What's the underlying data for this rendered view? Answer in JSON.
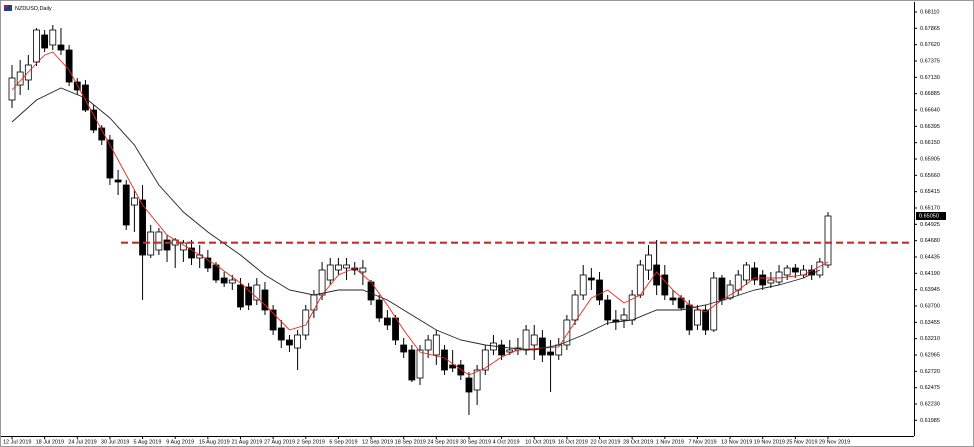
{
  "chart_data": {
    "type": "candlestick",
    "title": "NZDUSD,Daily",
    "categories": [
      "12 Jul 2019",
      null,
      null,
      null,
      "18 Jul 2019",
      null,
      null,
      null,
      "24 Jul 2019",
      null,
      null,
      null,
      "30 Jul 2019",
      null,
      null,
      null,
      "5 Aug 2019",
      null,
      null,
      null,
      "9 Aug 2019",
      null,
      null,
      null,
      "15 Aug 2019",
      null,
      null,
      null,
      "21 Aug 2019",
      null,
      null,
      null,
      "27 Aug 2019",
      null,
      null,
      null,
      "2 Sep 2019",
      null,
      null,
      null,
      "6 Sep 2019",
      null,
      null,
      null,
      "12 Sep 2019",
      null,
      null,
      null,
      "18 Sep 2019",
      null,
      null,
      null,
      "24 Sep 2019",
      null,
      null,
      null,
      "30 Sep 2019",
      null,
      null,
      null,
      "4 Oct 2019",
      null,
      null,
      null,
      "10 Oct 2019",
      null,
      null,
      null,
      "16 Oct 2019",
      null,
      null,
      null,
      "22 Oct 2019",
      null,
      null,
      null,
      "28 Oct 2019",
      null,
      null,
      null,
      "1 Nov 2019",
      null,
      null,
      null,
      "7 Nov 2019",
      null,
      null,
      null,
      "13 Nov 2019",
      null,
      null,
      null,
      "19 Nov 2019",
      null,
      null,
      null,
      "25 Nov 2019",
      null,
      null,
      null,
      "29 Nov 2019"
    ],
    "candles": [
      [
        0.6679,
        0.67315,
        0.6667,
        0.6712
      ],
      [
        0.67015,
        0.6739,
        0.66865,
        0.6721
      ],
      [
        0.6709,
        0.67465,
        0.6694,
        0.67315
      ],
      [
        0.6736,
        0.6787,
        0.673,
        0.6784
      ],
      [
        0.67765,
        0.6784,
        0.6751,
        0.6757
      ],
      [
        0.67615,
        0.67915,
        0.6754,
        0.6784
      ],
      [
        0.67615,
        0.6787,
        0.67465,
        0.6754
      ],
      [
        0.6754,
        0.67615,
        0.67,
        0.6706
      ],
      [
        0.6706,
        0.6712,
        0.66865,
        0.6694
      ],
      [
        0.67015,
        0.6709,
        0.6661,
        0.6664
      ],
      [
        0.6664,
        0.66715,
        0.66295,
        0.6634
      ],
      [
        0.6637,
        0.66415,
        0.66115,
        0.6619
      ],
      [
        0.6619,
        0.66265,
        0.65515,
        0.6562
      ],
      [
        0.6559,
        0.6574,
        0.65365,
        0.6556
      ],
      [
        0.65515,
        0.6559,
        0.6484,
        0.64915
      ],
      [
        0.65215,
        0.6544,
        0.6481,
        0.6532
      ],
      [
        0.6529,
        0.65515,
        0.6379,
        0.64465
      ],
      [
        0.64465,
        0.64915,
        0.6442,
        0.6481
      ],
      [
        0.6454,
        0.6487,
        0.64465,
        0.6481
      ],
      [
        0.6469,
        0.64765,
        0.6436,
        0.6454
      ],
      [
        0.64615,
        0.6472,
        0.6427,
        0.6469
      ],
      [
        0.6454,
        0.6469,
        0.6436,
        0.64645
      ],
      [
        0.6457,
        0.6469,
        0.64315,
        0.6442
      ],
      [
        0.6442,
        0.64615,
        0.6427,
        0.64465
      ],
      [
        0.6442,
        0.6454,
        0.6421,
        0.6427
      ],
      [
        0.64315,
        0.6436,
        0.64045,
        0.6409
      ],
      [
        0.6412,
        0.6421,
        0.63985,
        0.64045
      ],
      [
        0.64045,
        0.64165,
        0.6394,
        0.6409
      ],
      [
        0.64015,
        0.6412,
        0.6364,
        0.63685
      ],
      [
        0.63985,
        0.64045,
        0.6364,
        0.63715
      ],
      [
        0.6379,
        0.6412,
        0.63715,
        0.64015
      ],
      [
        0.6394,
        0.6406,
        0.63565,
        0.6364
      ],
      [
        0.6364,
        0.63715,
        0.63265,
        0.6334
      ],
      [
        0.6337,
        0.6349,
        0.6307,
        0.6319
      ],
      [
        0.6319,
        0.63265,
        0.6301,
        0.63115
      ],
      [
        0.6307,
        0.6334,
        0.6274,
        0.63265
      ],
      [
        0.63265,
        0.63715,
        0.6319,
        0.6364
      ],
      [
        0.6364,
        0.6394,
        0.6352,
        0.63865
      ],
      [
        0.63865,
        0.6436,
        0.6379,
        0.6424
      ],
      [
        0.6409,
        0.6442,
        0.64015,
        0.64315
      ],
      [
        0.6424,
        0.6442,
        0.64165,
        0.64315
      ],
      [
        0.6427,
        0.6442,
        0.6409,
        0.64315
      ],
      [
        0.6427,
        0.6436,
        0.64165,
        0.6424
      ],
      [
        0.6421,
        0.6439,
        0.64015,
        0.6427
      ],
      [
        0.6406,
        0.6409,
        0.63715,
        0.6379
      ],
      [
        0.6379,
        0.63865,
        0.6346,
        0.6352
      ],
      [
        0.6352,
        0.6364,
        0.6334,
        0.63415
      ],
      [
        0.6352,
        0.63565,
        0.63115,
        0.6319
      ],
      [
        0.63115,
        0.6322,
        0.6292,
        0.6301
      ],
      [
        0.6304,
        0.63115,
        0.6256,
        0.6259
      ],
      [
        0.6262,
        0.63115,
        0.62515,
        0.6304
      ],
      [
        0.6304,
        0.63265,
        0.6292,
        0.6319
      ],
      [
        0.62965,
        0.6334,
        0.62815,
        0.63265
      ],
      [
        0.6304,
        0.63115,
        0.62665,
        0.6274
      ],
      [
        0.62815,
        0.6304,
        0.6271,
        0.6277
      ],
      [
        0.62815,
        0.6289,
        0.6259,
        0.62665
      ],
      [
        0.6262,
        0.6271,
        0.62065,
        0.6241
      ],
      [
        0.6244,
        0.62815,
        0.62215,
        0.6274
      ],
      [
        0.6274,
        0.63115,
        0.62665,
        0.6304
      ],
      [
        0.6304,
        0.63265,
        0.62965,
        0.63145
      ],
      [
        0.63115,
        0.6319,
        0.6289,
        0.62965
      ],
      [
        0.6301,
        0.6319,
        0.62965,
        0.6304
      ],
      [
        0.6304,
        0.6322,
        0.62965,
        0.6307
      ],
      [
        0.6304,
        0.63415,
        0.62965,
        0.6334
      ],
      [
        0.63115,
        0.63415,
        0.6289,
        0.63265
      ],
      [
        0.6322,
        0.6334,
        0.6286,
        0.62965
      ],
      [
        0.6301,
        0.6319,
        0.6241,
        0.62965
      ],
      [
        0.62965,
        0.6322,
        0.6289,
        0.63115
      ],
      [
        0.63115,
        0.63565,
        0.6304,
        0.6349
      ],
      [
        0.6349,
        0.6394,
        0.63415,
        0.63865
      ],
      [
        0.63865,
        0.64315,
        0.6379,
        0.64165
      ],
      [
        0.6412,
        0.6427,
        0.6394,
        0.6409
      ],
      [
        0.6409,
        0.6421,
        0.63715,
        0.6379
      ],
      [
        0.6379,
        0.63865,
        0.63415,
        0.6349
      ],
      [
        0.6349,
        0.6364,
        0.6334,
        0.6346
      ],
      [
        0.6349,
        0.6367,
        0.6337,
        0.63565
      ],
      [
        0.6349,
        0.6394,
        0.63415,
        0.63865
      ],
      [
        0.63865,
        0.6439,
        0.6382,
        0.64315
      ],
      [
        0.6424,
        0.64615,
        0.6409,
        0.64465
      ],
      [
        0.64315,
        0.6469,
        0.63865,
        0.64015
      ],
      [
        0.64165,
        0.64315,
        0.6379,
        0.63865
      ],
      [
        0.6382,
        0.6394,
        0.63715,
        0.6379
      ],
      [
        0.6382,
        0.63865,
        0.6364,
        0.6367
      ],
      [
        0.63715,
        0.6379,
        0.63265,
        0.6334
      ],
      [
        0.63415,
        0.63715,
        0.6334,
        0.6364
      ],
      [
        0.6364,
        0.63715,
        0.63265,
        0.6334
      ],
      [
        0.6334,
        0.6421,
        0.6331,
        0.6412
      ],
      [
        0.6412,
        0.64165,
        0.63715,
        0.6379
      ],
      [
        0.6382,
        0.6409,
        0.6379,
        0.64015
      ],
      [
        0.6394,
        0.6424,
        0.63865,
        0.64165
      ],
      [
        0.6409,
        0.6436,
        0.64015,
        0.64315
      ],
      [
        0.6427,
        0.6436,
        0.64015,
        0.6409
      ],
      [
        0.64165,
        0.6424,
        0.6394,
        0.64015
      ],
      [
        0.64045,
        0.6421,
        0.6397,
        0.6409
      ],
      [
        0.6406,
        0.64315,
        0.64015,
        0.6421
      ],
      [
        0.64165,
        0.64315,
        0.6409,
        0.6427
      ],
      [
        0.6427,
        0.6433,
        0.6412,
        0.6421
      ],
      [
        0.64165,
        0.64315,
        0.6412,
        0.6424
      ],
      [
        0.6424,
        0.64315,
        0.6409,
        0.64165
      ],
      [
        0.64165,
        0.6442,
        0.6412,
        0.6436
      ],
      [
        0.64315,
        0.6511,
        0.6427,
        0.6505
      ]
    ],
    "lines": [
      {
        "color": "#e8281e",
        "x": [
          0,
          2,
          4,
          5,
          7,
          10,
          13,
          16,
          19,
          22,
          25,
          28,
          31,
          34,
          36,
          38,
          40,
          42,
          44,
          46,
          48,
          50,
          53,
          56,
          58,
          60,
          62,
          65,
          67,
          69,
          71,
          73,
          75,
          77,
          79,
          81,
          83,
          85,
          87,
          89,
          91,
          94,
          97,
          100
        ],
        "values": [
          0.6694,
          0.6721,
          0.67465,
          0.6751,
          0.6724,
          0.66565,
          0.6589,
          0.65215,
          0.64765,
          0.6454,
          0.64315,
          0.64045,
          0.63715,
          0.6334,
          0.63415,
          0.63865,
          0.64165,
          0.6427,
          0.6406,
          0.63715,
          0.6334,
          0.6301,
          0.6292,
          0.62665,
          0.6277,
          0.62935,
          0.6304,
          0.6307,
          0.63085,
          0.6346,
          0.6382,
          0.6394,
          0.63745,
          0.63865,
          0.6421,
          0.6394,
          0.63715,
          0.6361,
          0.6379,
          0.6394,
          0.6412,
          0.6412,
          0.64165,
          0.6436
        ]
      },
      {
        "color": "#222222",
        "x": [
          0,
          3,
          6,
          9,
          12,
          15,
          18,
          21,
          24,
          28,
          31,
          34,
          37,
          40,
          43,
          46,
          49,
          52,
          55,
          58,
          61,
          64,
          67,
          70,
          73,
          76,
          79,
          82,
          85,
          88,
          91,
          94,
          97,
          99
        ],
        "values": [
          0.6646,
          0.6679,
          0.6697,
          0.6682,
          0.6652,
          0.66115,
          0.65515,
          0.6511,
          0.6481,
          0.64465,
          0.64165,
          0.6394,
          0.63865,
          0.6394,
          0.6394,
          0.6379,
          0.63565,
          0.6334,
          0.6319,
          0.63115,
          0.6307,
          0.6304,
          0.63115,
          0.63265,
          0.63445,
          0.6349,
          0.6364,
          0.6364,
          0.63715,
          0.6382,
          0.6394,
          0.64015,
          0.6412,
          0.6424
        ]
      }
    ],
    "hline": {
      "value": 0.6465,
      "color": "#c0302b"
    },
    "current_price": {
      "value": 0.6505,
      "label": "0.65050"
    },
    "ylim": [
      0.6175,
      0.6829
    ],
    "yticks": [
      {
        "value": 0.6811,
        "label": "0.68110"
      },
      0.67865,
      {
        "value": 0.6762,
        "label": "0.67620"
      },
      0.67375,
      {
        "value": 0.6713,
        "label": "0.67130"
      },
      0.66885,
      {
        "value": 0.6664,
        "label": "0.66640"
      },
      0.66395,
      {
        "value": 0.6615,
        "label": "0.66150"
      },
      0.65905,
      {
        "value": 0.6566,
        "label": "0.65660"
      },
      0.65415,
      {
        "value": 0.6517,
        "label": "0.65170"
      },
      0.64925,
      {
        "value": 0.6468,
        "label": "0.64680"
      },
      0.64435,
      {
        "value": 0.6419,
        "label": "0.64190"
      },
      0.63945,
      {
        "value": 0.637,
        "label": "0.63700"
      },
      0.63455,
      {
        "value": 0.6321,
        "label": "0.63210"
      },
      0.62965,
      {
        "value": 0.6272,
        "label": "0.62720"
      },
      0.62475,
      {
        "value": 0.6223,
        "label": "0.62230"
      },
      0.61985
    ],
    "bull_color": "#ffffff",
    "bear_color": "#000000"
  }
}
